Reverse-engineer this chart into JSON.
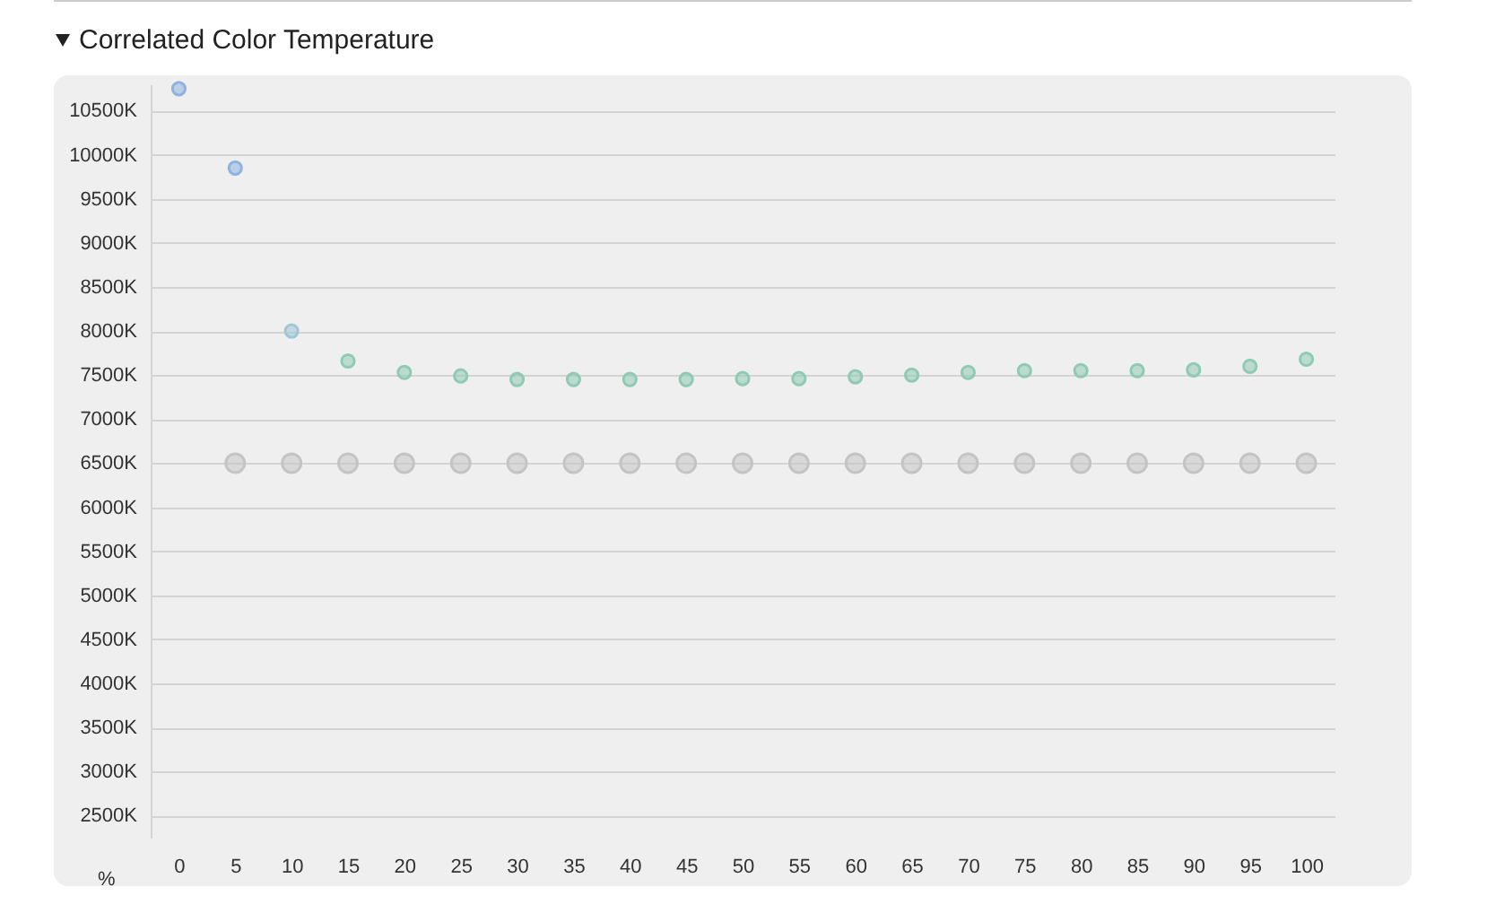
{
  "chart_data": {
    "type": "scatter",
    "title": "Correlated Color Temperature",
    "xlabel": "%",
    "categories": [
      "0",
      "5",
      "10",
      "15",
      "20",
      "25",
      "30",
      "35",
      "40",
      "45",
      "50",
      "55",
      "60",
      "65",
      "70",
      "75",
      "80",
      "85",
      "90",
      "95",
      "100"
    ],
    "series": [
      {
        "colors": [
          "#8fb3e0",
          "#8fb3e0",
          "#9fc7d6",
          "#8fcab4",
          "#8fcab4",
          "#8fcab4",
          "#8fcab4",
          "#8fcab4",
          "#8fcab4",
          "#8fcab4",
          "#8fcab4",
          "#8fcab4",
          "#8fcab4",
          "#8fcab4",
          "#8fcab4",
          "#8fcab4",
          "#8fcab4",
          "#8fcab4",
          "#8fcab4",
          "#8fcab4",
          "#8fcab4"
        ],
        "values": [
          10750,
          9850,
          8000,
          7660,
          7530,
          7490,
          7450,
          7450,
          7450,
          7450,
          7460,
          7460,
          7480,
          7500,
          7530,
          7550,
          7550,
          7550,
          7560,
          7600,
          7680
        ]
      },
      {
        "color": "#c4c4c4",
        "values": [
          null,
          6500,
          6500,
          6500,
          6500,
          6500,
          6500,
          6500,
          6500,
          6500,
          6500,
          6500,
          6500,
          6500,
          6500,
          6500,
          6500,
          6500,
          6500,
          6500,
          6500
        ]
      }
    ],
    "ylim": [
      2250,
      10800
    ],
    "yticks": [
      {
        "value": 2500,
        "label": "2500K"
      },
      {
        "value": 3000,
        "label": "3000K"
      },
      {
        "value": 3500,
        "label": "3500K"
      },
      {
        "value": 4000,
        "label": "4000K"
      },
      {
        "value": 4500,
        "label": "4500K"
      },
      {
        "value": 5000,
        "label": "5000K"
      },
      {
        "value": 5500,
        "label": "5500K"
      },
      {
        "value": 6000,
        "label": "6000K"
      },
      {
        "value": 6500,
        "label": "6500K"
      },
      {
        "value": 7000,
        "label": "7000K"
      },
      {
        "value": 7500,
        "label": "7500K"
      },
      {
        "value": 8000,
        "label": "8000K"
      },
      {
        "value": 8500,
        "label": "8500K"
      },
      {
        "value": 9000,
        "label": "9000K"
      },
      {
        "value": 9500,
        "label": "9500K"
      },
      {
        "value": 10000,
        "label": "10000K"
      },
      {
        "value": 10500,
        "label": "10500K"
      }
    ],
    "grid": "y",
    "marker": "circle"
  }
}
